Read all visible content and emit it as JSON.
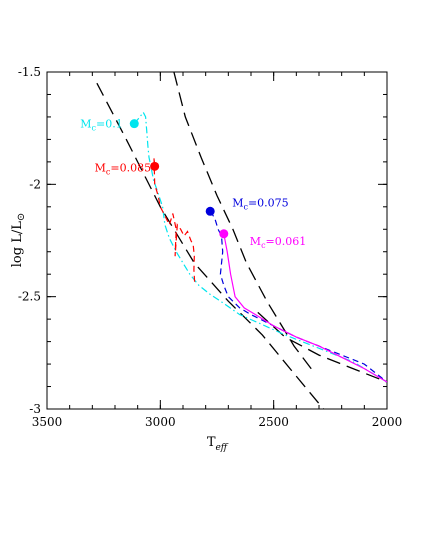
{
  "chart_data": {
    "type": "line",
    "xlabel_main": "T",
    "xlabel_sub": "eff",
    "ylabel_main": "log  L/L",
    "ylabel_sun": "⊙",
    "xlim": [
      3500,
      2000
    ],
    "ylim": [
      -3,
      -1.5
    ],
    "x_ticks": [
      {
        "value": 3500,
        "label": "3500"
      },
      {
        "value": 3000,
        "label": "3000"
      },
      {
        "value": 2500,
        "label": "2500"
      },
      {
        "value": 2000,
        "label": "2000"
      }
    ],
    "y_ticks": [
      {
        "value": -1.5,
        "label": "-1.5"
      },
      {
        "value": -2,
        "label": "-2"
      },
      {
        "value": -2.5,
        "label": "-2.5"
      },
      {
        "value": -3,
        "label": "-3"
      }
    ],
    "reference_lines": [
      {
        "style": "long-dash",
        "color": "#000000",
        "x": [
          3280,
          3150,
          3000,
          2850,
          2700,
          2550,
          2420,
          2280
        ],
        "y": [
          -1.55,
          -1.8,
          -2.1,
          -2.35,
          -2.52,
          -2.67,
          -2.83,
          -3.0
        ]
      },
      {
        "style": "long-dash",
        "color": "#000000",
        "x": [
          2940,
          2890,
          2820,
          2750,
          2680,
          2620,
          2530,
          2410,
          2320
        ],
        "y": [
          -1.5,
          -1.7,
          -1.88,
          -2.05,
          -2.2,
          -2.35,
          -2.52,
          -2.72,
          -2.84
        ]
      },
      {
        "style": "long-dash",
        "color": "#000000",
        "x": [
          2570,
          2450,
          2300,
          2150,
          2000
        ],
        "y": [
          -2.57,
          -2.68,
          -2.76,
          -2.82,
          -2.88
        ]
      }
    ],
    "series": [
      {
        "color": "#00e5ee",
        "style": "dash-dot",
        "start_label": "M",
        "start_sub": "c",
        "start_value": "=0.1",
        "start": [
          3115,
          -1.73
        ],
        "x": [
          3115,
          3090,
          3075,
          3065,
          3060,
          3055,
          3050,
          3040,
          3030,
          3010,
          2990,
          2980,
          2960,
          2930,
          2900,
          2870,
          2830,
          2780,
          2720,
          2650,
          2560,
          2450,
          2350,
          2250,
          2150,
          2000
        ],
        "y": [
          -1.73,
          -1.7,
          -1.68,
          -1.7,
          -1.76,
          -1.83,
          -1.88,
          -1.93,
          -1.98,
          -2.04,
          -2.1,
          -2.18,
          -2.24,
          -2.3,
          -2.35,
          -2.4,
          -2.45,
          -2.49,
          -2.53,
          -2.58,
          -2.62,
          -2.67,
          -2.71,
          -2.75,
          -2.79,
          -2.88
        ]
      },
      {
        "color": "#ff0000",
        "style": "dashed",
        "start_label": "M",
        "start_sub": "c",
        "start_value": "=0.085",
        "start": [
          3025,
          -1.92
        ],
        "x": [
          3025,
          3028,
          3025,
          3010,
          3000,
          2980,
          2960,
          2945,
          2930,
          2935,
          2925,
          2910,
          2895,
          2880,
          2865,
          2855,
          2850,
          2852,
          2848
        ],
        "y": [
          -1.92,
          -1.88,
          -2.0,
          -2.05,
          -2.1,
          -2.14,
          -2.18,
          -2.13,
          -2.2,
          -2.32,
          -2.18,
          -2.2,
          -2.23,
          -2.21,
          -2.25,
          -2.27,
          -2.32,
          -2.38,
          -2.45
        ]
      },
      {
        "color": "#0000dd",
        "style": "dashed",
        "start_label": "M",
        "start_sub": "c",
        "start_value": "=0.075",
        "start": [
          2780,
          -2.12
        ],
        "x": [
          2780,
          2760,
          2745,
          2730,
          2725,
          2735,
          2720,
          2700,
          2650,
          2600,
          2500,
          2400,
          2300,
          2200,
          2100,
          2000
        ],
        "y": [
          -2.12,
          -2.15,
          -2.2,
          -2.23,
          -2.3,
          -2.4,
          -2.45,
          -2.5,
          -2.55,
          -2.58,
          -2.63,
          -2.68,
          -2.72,
          -2.76,
          -2.8,
          -2.88
        ]
      },
      {
        "color": "#ff00ff",
        "style": "solid",
        "start_label": "M",
        "start_sub": "c",
        "start_value": "=0.061",
        "start": [
          2720,
          -2.22
        ],
        "x": [
          2720,
          2705,
          2690,
          2670,
          2630,
          2580,
          2500,
          2400,
          2300,
          2200,
          2100,
          2000
        ],
        "y": [
          -2.22,
          -2.3,
          -2.4,
          -2.5,
          -2.55,
          -2.58,
          -2.63,
          -2.68,
          -2.72,
          -2.77,
          -2.82,
          -2.88
        ]
      }
    ]
  }
}
